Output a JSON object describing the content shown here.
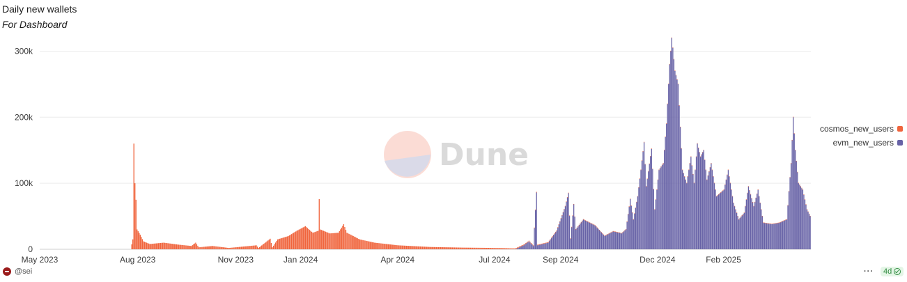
{
  "header": {
    "title": "Daily new wallets",
    "subtitle": "For Dashboard"
  },
  "legend": [
    {
      "label": "cosmos_new_users",
      "color": "#f0643c"
    },
    {
      "label": "evm_new_users",
      "color": "#6762a6"
    }
  ],
  "watermark": {
    "text": "Dune",
    "icon": "dune-logo-icon"
  },
  "footer": {
    "author": "@sei",
    "author_icon": "sei-logo-icon",
    "menu_icon": "more-dots-icon",
    "refresh_badge": "4d",
    "refresh_icon": "check-circle-icon"
  },
  "chart_data": {
    "type": "bar",
    "stacked": true,
    "x_axis": {
      "type": "date",
      "range": [
        "2023-05-01",
        "2025-04-23"
      ],
      "ticks": [
        "May 2023",
        "Aug 2023",
        "Nov 2023",
        "Jan 2024",
        "Apr 2024",
        "Jul 2024",
        "Sep 2024",
        "Dec 2024",
        "Feb 2025"
      ],
      "tick_dates": [
        "2023-05-01",
        "2023-08-01",
        "2023-11-01",
        "2024-01-01",
        "2024-04-01",
        "2024-07-01",
        "2024-09-01",
        "2024-12-01",
        "2025-02-01"
      ]
    },
    "y_axis": {
      "range": [
        0,
        330000
      ],
      "ticks": [
        0,
        100000,
        200000,
        300000
      ],
      "tick_labels": [
        "0",
        "100k",
        "200k",
        "300k"
      ]
    },
    "grid": true,
    "legend_position": "right",
    "series": [
      {
        "name": "cosmos_new_users",
        "color": "#f0643c",
        "points": [
          [
            "2023-05-01",
            0
          ],
          [
            "2023-07-25",
            0
          ],
          [
            "2023-07-27",
            15000
          ],
          [
            "2023-07-28",
            160000
          ],
          [
            "2023-07-29",
            100000
          ],
          [
            "2023-07-30",
            75000
          ],
          [
            "2023-07-31",
            30000
          ],
          [
            "2023-08-03",
            22000
          ],
          [
            "2023-08-06",
            12000
          ],
          [
            "2023-08-12",
            8000
          ],
          [
            "2023-08-25",
            10000
          ],
          [
            "2023-09-08",
            7000
          ],
          [
            "2023-09-20",
            5000
          ],
          [
            "2023-09-24",
            10000
          ],
          [
            "2023-09-27",
            3000
          ],
          [
            "2023-10-10",
            5000
          ],
          [
            "2023-10-25",
            2000
          ],
          [
            "2023-11-20",
            6000
          ],
          [
            "2023-11-22",
            2000
          ],
          [
            "2023-12-03",
            16000
          ],
          [
            "2023-12-05",
            3000
          ],
          [
            "2023-12-10",
            15000
          ],
          [
            "2023-12-20",
            20000
          ],
          [
            "2023-12-28",
            28000
          ],
          [
            "2024-01-05",
            35000
          ],
          [
            "2024-01-12",
            25000
          ],
          [
            "2024-01-17",
            28000
          ],
          [
            "2024-01-18",
            76000
          ],
          [
            "2024-01-19",
            30000
          ],
          [
            "2024-01-28",
            24000
          ],
          [
            "2024-02-05",
            25000
          ],
          [
            "2024-02-10",
            38000
          ],
          [
            "2024-02-13",
            25000
          ],
          [
            "2024-02-25",
            15000
          ],
          [
            "2024-03-10",
            10000
          ],
          [
            "2024-04-01",
            6000
          ],
          [
            "2024-05-01",
            3500
          ],
          [
            "2024-06-01",
            2500
          ],
          [
            "2024-07-01",
            2000
          ],
          [
            "2024-07-15",
            1500
          ],
          [
            "2024-08-01",
            1000
          ],
          [
            "2024-10-01",
            500
          ],
          [
            "2025-04-23",
            500
          ]
        ]
      },
      {
        "name": "evm_new_users",
        "color": "#6762a6",
        "points": [
          [
            "2023-05-01",
            0
          ],
          [
            "2024-07-20",
            0
          ],
          [
            "2024-07-28",
            6000
          ],
          [
            "2024-08-02",
            12000
          ],
          [
            "2024-08-06",
            5000
          ],
          [
            "2024-08-09",
            86000
          ],
          [
            "2024-08-10",
            6000
          ],
          [
            "2024-08-20",
            10000
          ],
          [
            "2024-08-28",
            28000
          ],
          [
            "2024-09-05",
            65000
          ],
          [
            "2024-09-08",
            85000
          ],
          [
            "2024-09-10",
            16000
          ],
          [
            "2024-09-13",
            68000
          ],
          [
            "2024-09-15",
            30000
          ],
          [
            "2024-09-22",
            45000
          ],
          [
            "2024-10-03",
            36000
          ],
          [
            "2024-10-12",
            20000
          ],
          [
            "2024-10-20",
            27000
          ],
          [
            "2024-10-28",
            24000
          ],
          [
            "2024-11-01",
            30000
          ],
          [
            "2024-11-05",
            76000
          ],
          [
            "2024-11-08",
            45000
          ],
          [
            "2024-11-12",
            80000
          ],
          [
            "2024-11-15",
            120000
          ],
          [
            "2024-11-18",
            162000
          ],
          [
            "2024-11-20",
            95000
          ],
          [
            "2024-11-25",
            152000
          ],
          [
            "2024-11-28",
            60000
          ],
          [
            "2024-12-02",
            120000
          ],
          [
            "2024-12-06",
            130000
          ],
          [
            "2024-12-09",
            190000
          ],
          [
            "2024-12-12",
            280000
          ],
          [
            "2024-12-14",
            320000
          ],
          [
            "2024-12-15",
            305000
          ],
          [
            "2024-12-17",
            270000
          ],
          [
            "2024-12-20",
            250000
          ],
          [
            "2024-12-24",
            120000
          ],
          [
            "2024-12-28",
            100000
          ],
          [
            "2025-01-01",
            140000
          ],
          [
            "2025-01-04",
            100000
          ],
          [
            "2025-01-07",
            160000
          ],
          [
            "2025-01-10",
            140000
          ],
          [
            "2025-01-13",
            150000
          ],
          [
            "2025-01-16",
            105000
          ],
          [
            "2025-01-20",
            130000
          ],
          [
            "2025-01-25",
            80000
          ],
          [
            "2025-02-01",
            90000
          ],
          [
            "2025-02-05",
            120000
          ],
          [
            "2025-02-10",
            70000
          ],
          [
            "2025-02-15",
            45000
          ],
          [
            "2025-02-20",
            55000
          ],
          [
            "2025-02-24",
            95000
          ],
          [
            "2025-03-01",
            65000
          ],
          [
            "2025-03-05",
            90000
          ],
          [
            "2025-03-10",
            40000
          ],
          [
            "2025-03-18",
            38000
          ],
          [
            "2025-03-25",
            40000
          ],
          [
            "2025-04-01",
            45000
          ],
          [
            "2025-04-05",
            130000
          ],
          [
            "2025-04-07",
            200000
          ],
          [
            "2025-04-09",
            150000
          ],
          [
            "2025-04-12",
            100000
          ],
          [
            "2025-04-16",
            90000
          ],
          [
            "2025-04-20",
            60000
          ],
          [
            "2025-04-23",
            50000
          ]
        ]
      }
    ]
  }
}
